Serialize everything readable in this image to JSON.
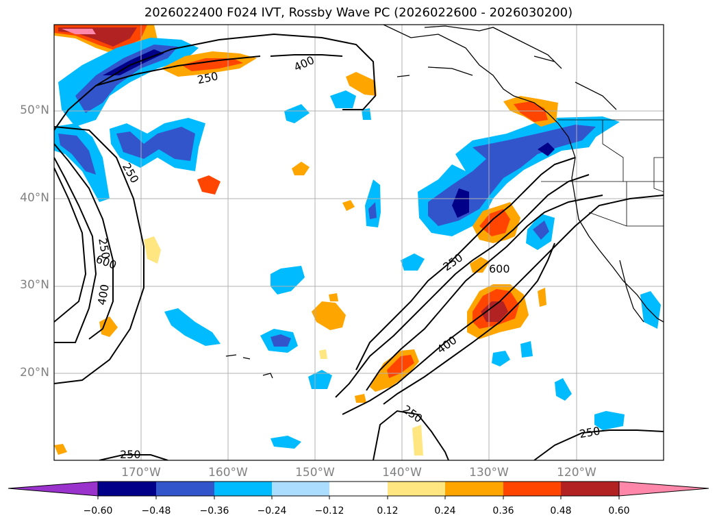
{
  "title": "2026022400 F024 IVT, Rossby Wave PC (2026022600 - 2026030200)",
  "lat_labels": [
    "50°N",
    "40°N",
    "30°N",
    "20°N"
  ],
  "lon_labels": [
    "170°W",
    "160°W",
    "150°W",
    "140°W",
    "130°W",
    "120°W"
  ],
  "contour_labels": [
    "400",
    "250",
    "250",
    "250",
    "600",
    "400",
    "250",
    "600",
    "400",
    "250",
    "250",
    "250"
  ],
  "colorbar": {
    "ticks": [
      "−0.60",
      "−0.48",
      "−0.36",
      "−0.24",
      "−0.12",
      "0.12",
      "0.24",
      "0.36",
      "0.48",
      "0.60"
    ],
    "colors": [
      "#9933cc",
      "#000088",
      "#3355cc",
      "#00bbff",
      "#aaddff",
      "#ffffff",
      "#ffe680",
      "#ffa500",
      "#ff4500",
      "#b22222",
      "#ff88aa"
    ]
  }
}
